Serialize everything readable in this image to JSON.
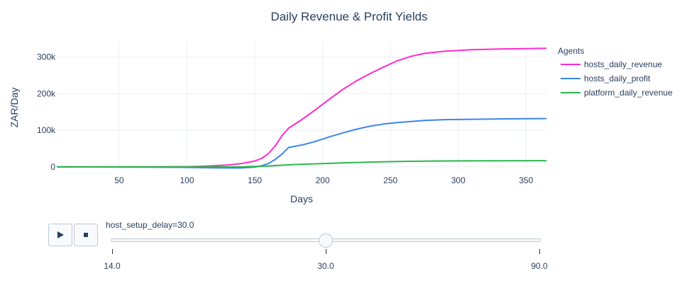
{
  "chart_data": {
    "type": "line",
    "title": "Daily Revenue & Profit Yields",
    "xlabel": "Days",
    "ylabel": "ZAR/Day",
    "xlim": [
      4,
      365
    ],
    "ylim": [
      -8000,
      340000
    ],
    "x_ticks": [
      50,
      100,
      150,
      200,
      250,
      300,
      350
    ],
    "y_ticks": [
      0,
      100000,
      200000,
      300000
    ],
    "y_tick_labels": [
      "0",
      "100k",
      "200k",
      "300k"
    ],
    "grid": true,
    "legend_title": "Agents",
    "legend_placement": "top-right outside",
    "series": [
      {
        "name": "hosts_daily_revenue",
        "color": "#ff2ad0",
        "x": [
          4,
          50,
          100,
          110,
          120,
          130,
          140,
          150,
          155,
          160,
          165,
          170,
          175,
          185,
          195,
          205,
          215,
          225,
          235,
          245,
          255,
          265,
          275,
          290,
          310,
          330,
          350,
          365
        ],
        "y": [
          0,
          0,
          500,
          1500,
          3000,
          5000,
          9000,
          16000,
          23000,
          36000,
          57000,
          85000,
          106000,
          130000,
          157000,
          185000,
          212000,
          235000,
          255000,
          273000,
          290000,
          302000,
          310000,
          316000,
          320000,
          322000,
          323000,
          324000
        ]
      },
      {
        "name": "hosts_daily_profit",
        "color": "#3a86e8",
        "x": [
          4,
          50,
          100,
          120,
          130,
          140,
          150,
          155,
          160,
          165,
          170,
          175,
          185,
          195,
          205,
          215,
          225,
          235,
          245,
          255,
          265,
          275,
          290,
          310,
          330,
          350,
          365
        ],
        "y": [
          0,
          -500,
          -1500,
          -2500,
          -3000,
          -3000,
          -500,
          3000,
          9000,
          20000,
          35000,
          53000,
          60000,
          70000,
          82000,
          93000,
          103000,
          111000,
          117000,
          121000,
          124000,
          127000,
          129000,
          130000,
          131000,
          131500,
          132000
        ]
      },
      {
        "name": "platform_daily_revenue",
        "color": "#2ab84a",
        "x": [
          4,
          50,
          100,
          140,
          150,
          160,
          170,
          180,
          200,
          220,
          240,
          260,
          280,
          300,
          330,
          365
        ],
        "y": [
          0,
          0,
          0,
          0,
          1000,
          2500,
          4500,
          6500,
          9000,
          11500,
          13500,
          15000,
          16000,
          16300,
          16600,
          17000
        ]
      }
    ]
  },
  "slider": {
    "label": "host_setup_delay=30.0",
    "steps": [
      "14.0",
      "30.0",
      "90.0"
    ],
    "active_index": 1
  },
  "controls": {
    "play_icon": "play-icon",
    "stop_icon": "stop-icon"
  }
}
